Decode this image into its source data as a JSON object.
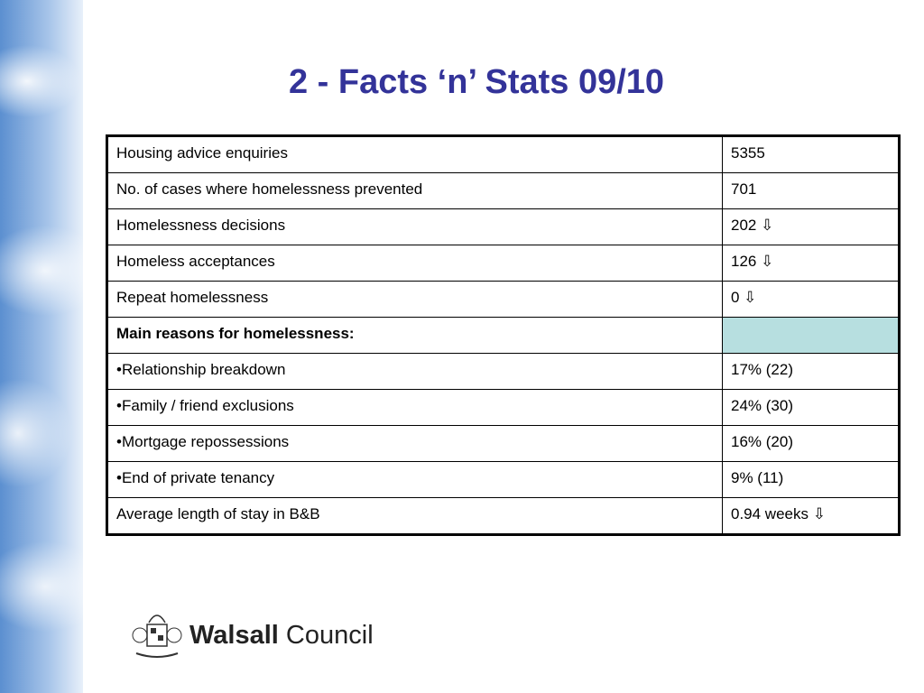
{
  "title": "2 - Facts ‘n’ Stats 09/10",
  "table": {
    "rows": [
      [
        "Housing advice enquiries",
        "5355"
      ],
      [
        "No. of cases where homelessness prevented",
        "701"
      ],
      [
        "Homelessness decisions",
        "202 ⇩"
      ],
      [
        "Homeless acceptances",
        "126 ⇩"
      ],
      [
        "Repeat homelessness",
        "0 ⇩"
      ],
      [
        "Main reasons for homelessness:"
      ],
      [
        "•Relationship breakdown",
        "17% (22)"
      ],
      [
        "•Family / friend exclusions",
        "24% (30)"
      ],
      [
        "•Mortgage repossessions",
        "16% (20)"
      ],
      [
        "•End of private tenancy",
        "9% (11)"
      ],
      [
        "Average length of stay in B&B",
        "0.94 weeks ⇩"
      ]
    ]
  },
  "logo": {
    "name": "Walsall",
    "suffix": "Council"
  }
}
